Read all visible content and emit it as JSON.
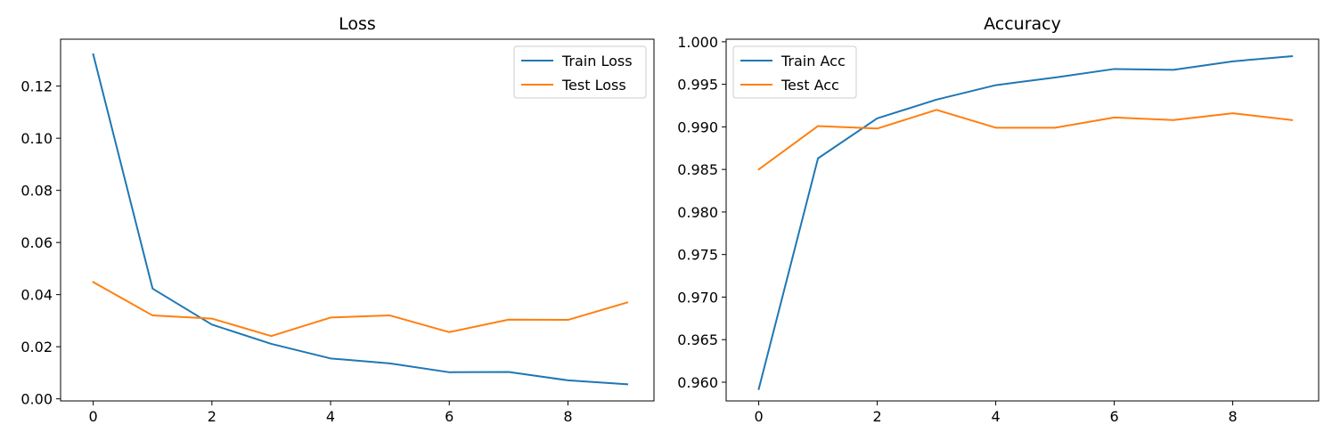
{
  "chart_data": [
    {
      "type": "line",
      "title": "Loss",
      "xlabel": "",
      "ylabel": "",
      "x": [
        0,
        1,
        2,
        3,
        4,
        5,
        6,
        7,
        8,
        9
      ],
      "xlim": [
        -0.55,
        9.45
      ],
      "ylim": [
        -0.0008,
        0.138
      ],
      "xticks": [
        0,
        2,
        4,
        6,
        8
      ],
      "xtick_labels": [
        "0",
        "2",
        "4",
        "6",
        "8"
      ],
      "yticks": [
        0.0,
        0.02,
        0.04,
        0.06,
        0.08,
        0.1,
        0.12
      ],
      "ytick_labels": [
        "0.00",
        "0.02",
        "0.04",
        "0.06",
        "0.08",
        "0.10",
        "0.12"
      ],
      "legend": "top-right",
      "grid": false,
      "series": [
        {
          "name": "Train Loss",
          "color": "#1f77b4",
          "values": [
            0.1322,
            0.0423,
            0.0285,
            0.0211,
            0.0155,
            0.0136,
            0.0102,
            0.0103,
            0.0071,
            0.0056
          ]
        },
        {
          "name": "Test Loss",
          "color": "#ff7f0e",
          "values": [
            0.0448,
            0.032,
            0.0308,
            0.0241,
            0.0312,
            0.032,
            0.0256,
            0.0304,
            0.0303,
            0.037
          ]
        }
      ]
    },
    {
      "type": "line",
      "title": "Accuracy",
      "xlabel": "",
      "ylabel": "",
      "x": [
        0,
        1,
        2,
        3,
        4,
        5,
        6,
        7,
        8,
        9
      ],
      "xlim": [
        -0.55,
        9.45
      ],
      "ylim": [
        0.9578,
        1.0003
      ],
      "xticks": [
        0,
        2,
        4,
        6,
        8
      ],
      "xtick_labels": [
        "0",
        "2",
        "4",
        "6",
        "8"
      ],
      "yticks": [
        0.96,
        0.965,
        0.97,
        0.975,
        0.98,
        0.985,
        0.99,
        0.995,
        1.0
      ],
      "ytick_labels": [
        "0.960",
        "0.965",
        "0.970",
        "0.975",
        "0.980",
        "0.985",
        "0.990",
        "0.995",
        "1.000"
      ],
      "legend": "top-left",
      "grid": false,
      "series": [
        {
          "name": "Train Acc",
          "color": "#1f77b4",
          "values": [
            0.9592,
            0.9863,
            0.991,
            0.9932,
            0.9949,
            0.9958,
            0.9968,
            0.9967,
            0.9977,
            0.9983
          ]
        },
        {
          "name": "Test Acc",
          "color": "#ff7f0e",
          "values": [
            0.985,
            0.9901,
            0.9898,
            0.992,
            0.9899,
            0.9899,
            0.9911,
            0.9908,
            0.9916,
            0.9908
          ]
        }
      ]
    }
  ]
}
